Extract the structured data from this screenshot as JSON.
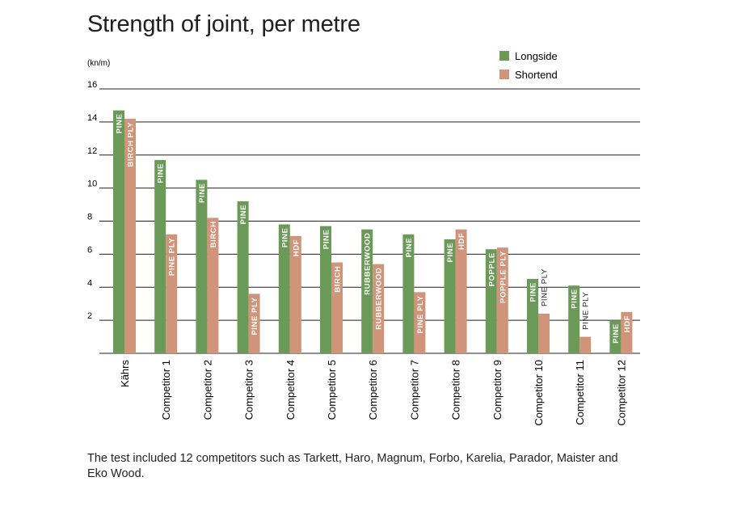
{
  "title": "Strength of joint, per metre",
  "footnote": "The test included 12 competitors such as Tarkett, Haro, Magnum, Forbo, Karelia, Parador, Maister and Eko Wood.",
  "colors": {
    "longside": "#6b9a58",
    "shortend": "#cf9479",
    "grid": "#231f20"
  },
  "chart_data": {
    "type": "bar",
    "title": "Strength of joint, per metre",
    "ylabel": "(kn/m)",
    "xlabel": "",
    "ylim": [
      0,
      16
    ],
    "yticks": [
      2,
      4,
      6,
      8,
      10,
      12,
      14,
      16
    ],
    "grid": true,
    "legend_position": "top-right",
    "categories": [
      "Kährs",
      "Competitor 1",
      "Competitor 2",
      "Competitor 3",
      "Competitor 4",
      "Competitor 5",
      "Competitor 6",
      "Competitor 7",
      "Competitor 8",
      "Competitor 9",
      "Competitor 10",
      "Competitor 11",
      "Competitor 12"
    ],
    "series": [
      {
        "name": "Longside",
        "values": [
          14.7,
          11.7,
          10.5,
          9.2,
          7.8,
          7.7,
          7.5,
          7.2,
          6.9,
          6.3,
          4.5,
          4.1,
          2.0
        ],
        "bar_labels": [
          "PINE",
          "PINE",
          "PINE",
          "PINE",
          "PINE",
          "PINE",
          "RUBBERWOOD",
          "PINE",
          "PINE",
          "POPPLE",
          "PINE",
          "PINE",
          "PINE"
        ]
      },
      {
        "name": "Shortend",
        "values": [
          14.2,
          7.2,
          8.2,
          3.6,
          7.1,
          5.5,
          5.4,
          3.7,
          7.5,
          6.4,
          2.4,
          1.0,
          2.5
        ],
        "bar_labels": [
          "BIRCH PLY",
          "PINE PLY",
          "BIRCH",
          "PINE PLY",
          "HDF",
          "BIRCH",
          "RUBBERWOOD",
          "PINE PLY",
          "HDF",
          "POPPLE PLY",
          "PINE PLY",
          "PINE PLY",
          "HDF"
        ]
      }
    ]
  }
}
